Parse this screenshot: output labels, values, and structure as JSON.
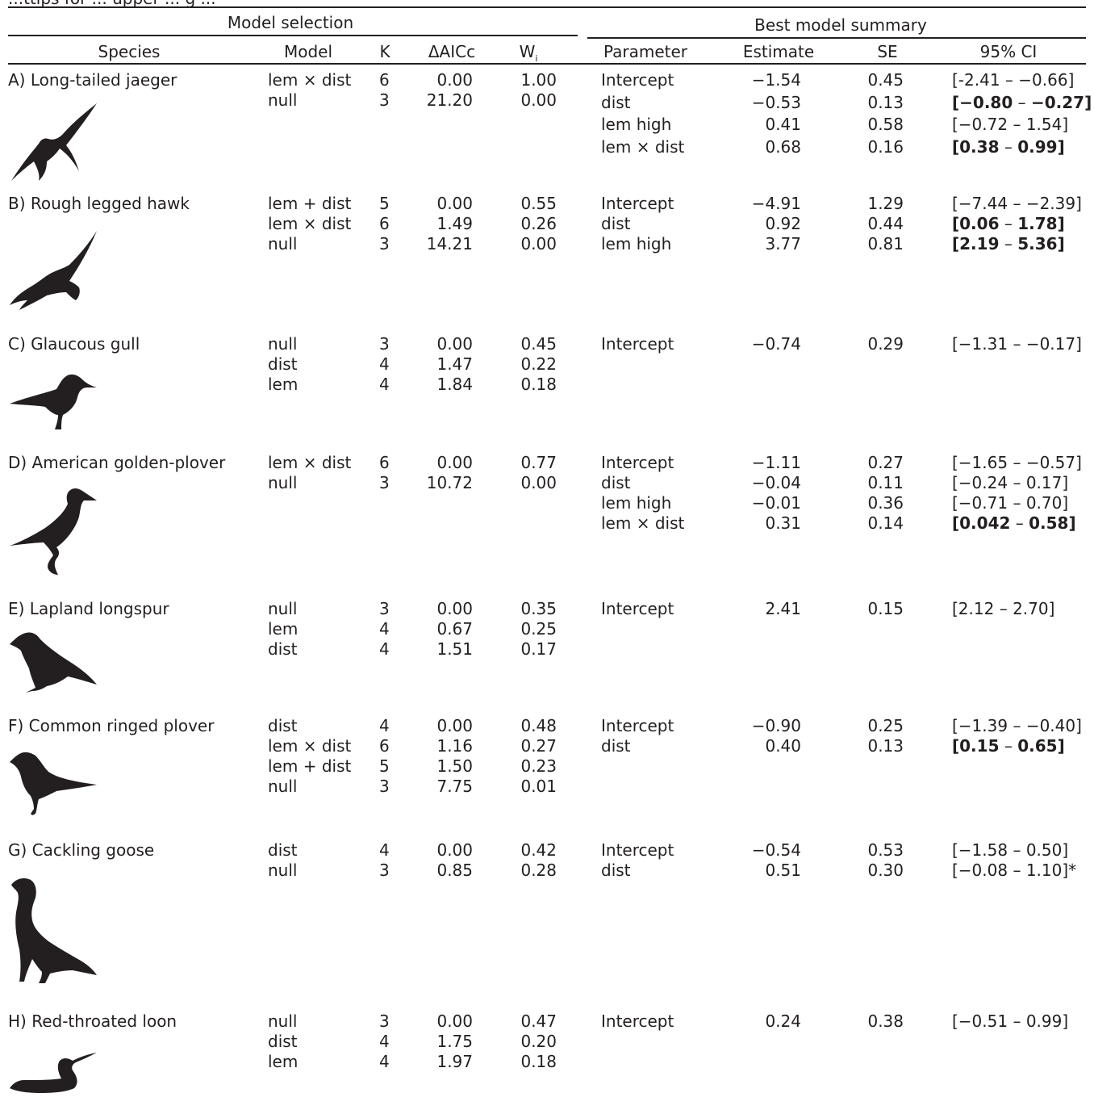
{
  "caption_fragment": "...ttips for ... upper ... g ...",
  "groups": {
    "model_selection": "Model selection",
    "best_model_summary": "Best model summary"
  },
  "columns": {
    "species": "Species",
    "model": "Model",
    "k": "K",
    "daicc": "ΔAICc",
    "w_base": "W",
    "w_sub": "i",
    "parameter": "Parameter",
    "estimate": "Estimate",
    "se": "SE",
    "ci": "95% CI"
  },
  "rows": [
    {
      "species": "A) Long-tailed jaeger",
      "icon": "jaeger-silhouette-icon",
      "models": [
        {
          "model": "lem × dist",
          "k": "6",
          "daicc": "0.00",
          "w": "1.00"
        },
        {
          "model": "null",
          "k": "3",
          "daicc": "21.20",
          "w": "0.00"
        }
      ],
      "params": [
        {
          "parameter": "Intercept",
          "estimate": "−1.54",
          "se": "0.45",
          "ci_lo": "[-2.41",
          "ci_hi": "−0.66]",
          "bold": false,
          "note": ""
        },
        {
          "parameter": "dist",
          "estimate": "−0.53",
          "se": "0.13",
          "ci_lo": "[−0.80",
          "ci_hi": "−0.27]",
          "bold": true,
          "note": ""
        },
        {
          "parameter": "lem high",
          "estimate": "0.41",
          "se": "0.58",
          "ci_lo": "[−0.72",
          "ci_hi": "1.54]",
          "bold": false,
          "note": ""
        },
        {
          "parameter": "lem × dist",
          "estimate": "0.68",
          "se": "0.16",
          "ci_lo": "[0.38",
          "ci_hi": "0.99]",
          "bold": true,
          "note": ""
        }
      ]
    },
    {
      "species": "B) Rough legged hawk",
      "icon": "hawk-silhouette-icon",
      "models": [
        {
          "model": "lem + dist",
          "k": "5",
          "daicc": "0.00",
          "w": "0.55"
        },
        {
          "model": "lem × dist",
          "k": "6",
          "daicc": "1.49",
          "w": "0.26"
        },
        {
          "model": "null",
          "k": "3",
          "daicc": "14.21",
          "w": "0.00"
        }
      ],
      "params": [
        {
          "parameter": "Intercept",
          "estimate": "−4.91",
          "se": "1.29",
          "ci_lo": "[−7.44",
          "ci_hi": "−2.39]",
          "bold": false,
          "note": ""
        },
        {
          "parameter": "dist",
          "estimate": "0.92",
          "se": "0.44",
          "ci_lo": "[0.06",
          "ci_hi": "1.78]",
          "bold": true,
          "note": ""
        },
        {
          "parameter": "lem high",
          "estimate": "3.77",
          "se": "0.81",
          "ci_lo": "[2.19",
          "ci_hi": "5.36]",
          "bold": true,
          "note": ""
        }
      ]
    },
    {
      "species": "C) Glaucous gull",
      "icon": "gull-silhouette-icon",
      "models": [
        {
          "model": "null",
          "k": "3",
          "daicc": "0.00",
          "w": "0.45"
        },
        {
          "model": "dist",
          "k": "4",
          "daicc": "1.47",
          "w": "0.22"
        },
        {
          "model": "lem",
          "k": "4",
          "daicc": "1.84",
          "w": "0.18"
        }
      ],
      "params": [
        {
          "parameter": "Intercept",
          "estimate": "−0.74",
          "se": "0.29",
          "ci_lo": "[−1.31",
          "ci_hi": "−0.17]",
          "bold": false,
          "note": ""
        }
      ]
    },
    {
      "species": "D) American golden-plover",
      "icon": "golden-plover-silhouette-icon",
      "models": [
        {
          "model": "lem × dist",
          "k": "6",
          "daicc": "0.00",
          "w": "0.77"
        },
        {
          "model": "null",
          "k": "3",
          "daicc": "10.72",
          "w": "0.00"
        }
      ],
      "params": [
        {
          "parameter": "Intercept",
          "estimate": "−1.11",
          "se": "0.27",
          "ci_lo": "[−1.65",
          "ci_hi": "−0.57]",
          "bold": false,
          "note": ""
        },
        {
          "parameter": "dist",
          "estimate": "−0.04",
          "se": "0.11",
          "ci_lo": "[−0.24",
          "ci_hi": "0.17]",
          "bold": false,
          "note": ""
        },
        {
          "parameter": "lem high",
          "estimate": "−0.01",
          "se": "0.36",
          "ci_lo": "[−0.71",
          "ci_hi": "0.70]",
          "bold": false,
          "note": ""
        },
        {
          "parameter": "lem × dist",
          "estimate": "0.31",
          "se": "0.14",
          "ci_lo": "[0.042",
          "ci_hi": "0.58]",
          "bold": true,
          "note": ""
        }
      ]
    },
    {
      "species": "E) Lapland longspur",
      "icon": "longspur-silhouette-icon",
      "models": [
        {
          "model": "null",
          "k": "3",
          "daicc": "0.00",
          "w": "0.35"
        },
        {
          "model": "lem",
          "k": "4",
          "daicc": "0.67",
          "w": "0.25"
        },
        {
          "model": "dist",
          "k": "4",
          "daicc": "1.51",
          "w": "0.17"
        }
      ],
      "params": [
        {
          "parameter": "Intercept",
          "estimate": "2.41",
          "se": "0.15",
          "ci_lo": "[2.12",
          "ci_hi": "2.70]",
          "bold": false,
          "note": ""
        }
      ]
    },
    {
      "species": "F) Common ringed plover",
      "icon": "ringed-plover-silhouette-icon",
      "models": [
        {
          "model": "dist",
          "k": "4",
          "daicc": "0.00",
          "w": "0.48"
        },
        {
          "model": "lem × dist",
          "k": "6",
          "daicc": "1.16",
          "w": "0.27"
        },
        {
          "model": "lem + dist",
          "k": "5",
          "daicc": "1.50",
          "w": "0.23"
        },
        {
          "model": "null",
          "k": "3",
          "daicc": "7.75",
          "w": "0.01"
        }
      ],
      "params": [
        {
          "parameter": "Intercept",
          "estimate": "−0.90",
          "se": "0.25",
          "ci_lo": "[−1.39",
          "ci_hi": "−0.40]",
          "bold": false,
          "note": ""
        },
        {
          "parameter": "dist",
          "estimate": "0.40",
          "se": "0.13",
          "ci_lo": "[0.15",
          "ci_hi": "0.65]",
          "bold": true,
          "note": ""
        }
      ]
    },
    {
      "species": "G) Cackling goose",
      "icon": "goose-silhouette-icon",
      "models": [
        {
          "model": "dist",
          "k": "4",
          "daicc": "0.00",
          "w": "0.42"
        },
        {
          "model": "null",
          "k": "3",
          "daicc": "0.85",
          "w": "0.28"
        }
      ],
      "params": [
        {
          "parameter": "Intercept",
          "estimate": "−0.54",
          "se": "0.53",
          "ci_lo": "[−1.58",
          "ci_hi": "0.50]",
          "bold": false,
          "note": ""
        },
        {
          "parameter": "dist",
          "estimate": "0.51",
          "se": "0.30",
          "ci_lo": "[−0.08",
          "ci_hi": "1.10]",
          "bold": false,
          "note": "*"
        }
      ]
    },
    {
      "species": "H) Red-throated loon",
      "icon": "loon-silhouette-icon",
      "models": [
        {
          "model": "null",
          "k": "3",
          "daicc": "0.00",
          "w": "0.47"
        },
        {
          "model": "dist",
          "k": "4",
          "daicc": "1.75",
          "w": "0.20"
        },
        {
          "model": "lem",
          "k": "4",
          "daicc": "1.97",
          "w": "0.18"
        }
      ],
      "params": [
        {
          "parameter": "Intercept",
          "estimate": "0.24",
          "se": "0.38",
          "ci_lo": "[−0.51",
          "ci_hi": "0.99]",
          "bold": false,
          "note": ""
        }
      ]
    }
  ]
}
